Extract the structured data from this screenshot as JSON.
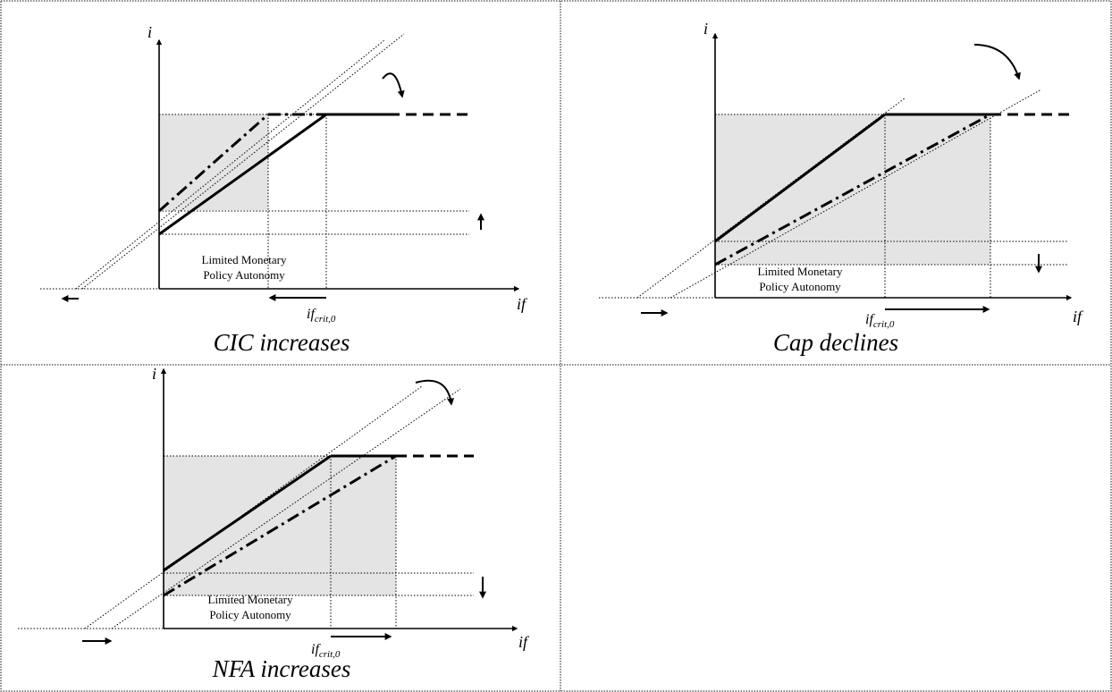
{
  "panels": [
    {
      "y_axis_label": "i",
      "x_axis_label": "if",
      "threshold_label": {
        "base": "if",
        "subscript": "crit,0"
      },
      "region_label": [
        "Limited Monetary",
        "Policy Autonomy"
      ],
      "caption": "CIC increases"
    },
    {
      "y_axis_label": "i",
      "x_axis_label": "if",
      "threshold_label": {
        "base": "if",
        "subscript": "crit,0"
      },
      "region_label": [
        "Limited Monetary",
        "Policy Autonomy"
      ],
      "caption": "Cap declines"
    },
    {
      "y_axis_label": "i",
      "x_axis_label": "if",
      "threshold_label": {
        "base": "if",
        "subscript": "crit,0"
      },
      "region_label": [
        "Limited Monetary",
        "Policy Autonomy"
      ],
      "caption": "NFA increases"
    }
  ]
}
